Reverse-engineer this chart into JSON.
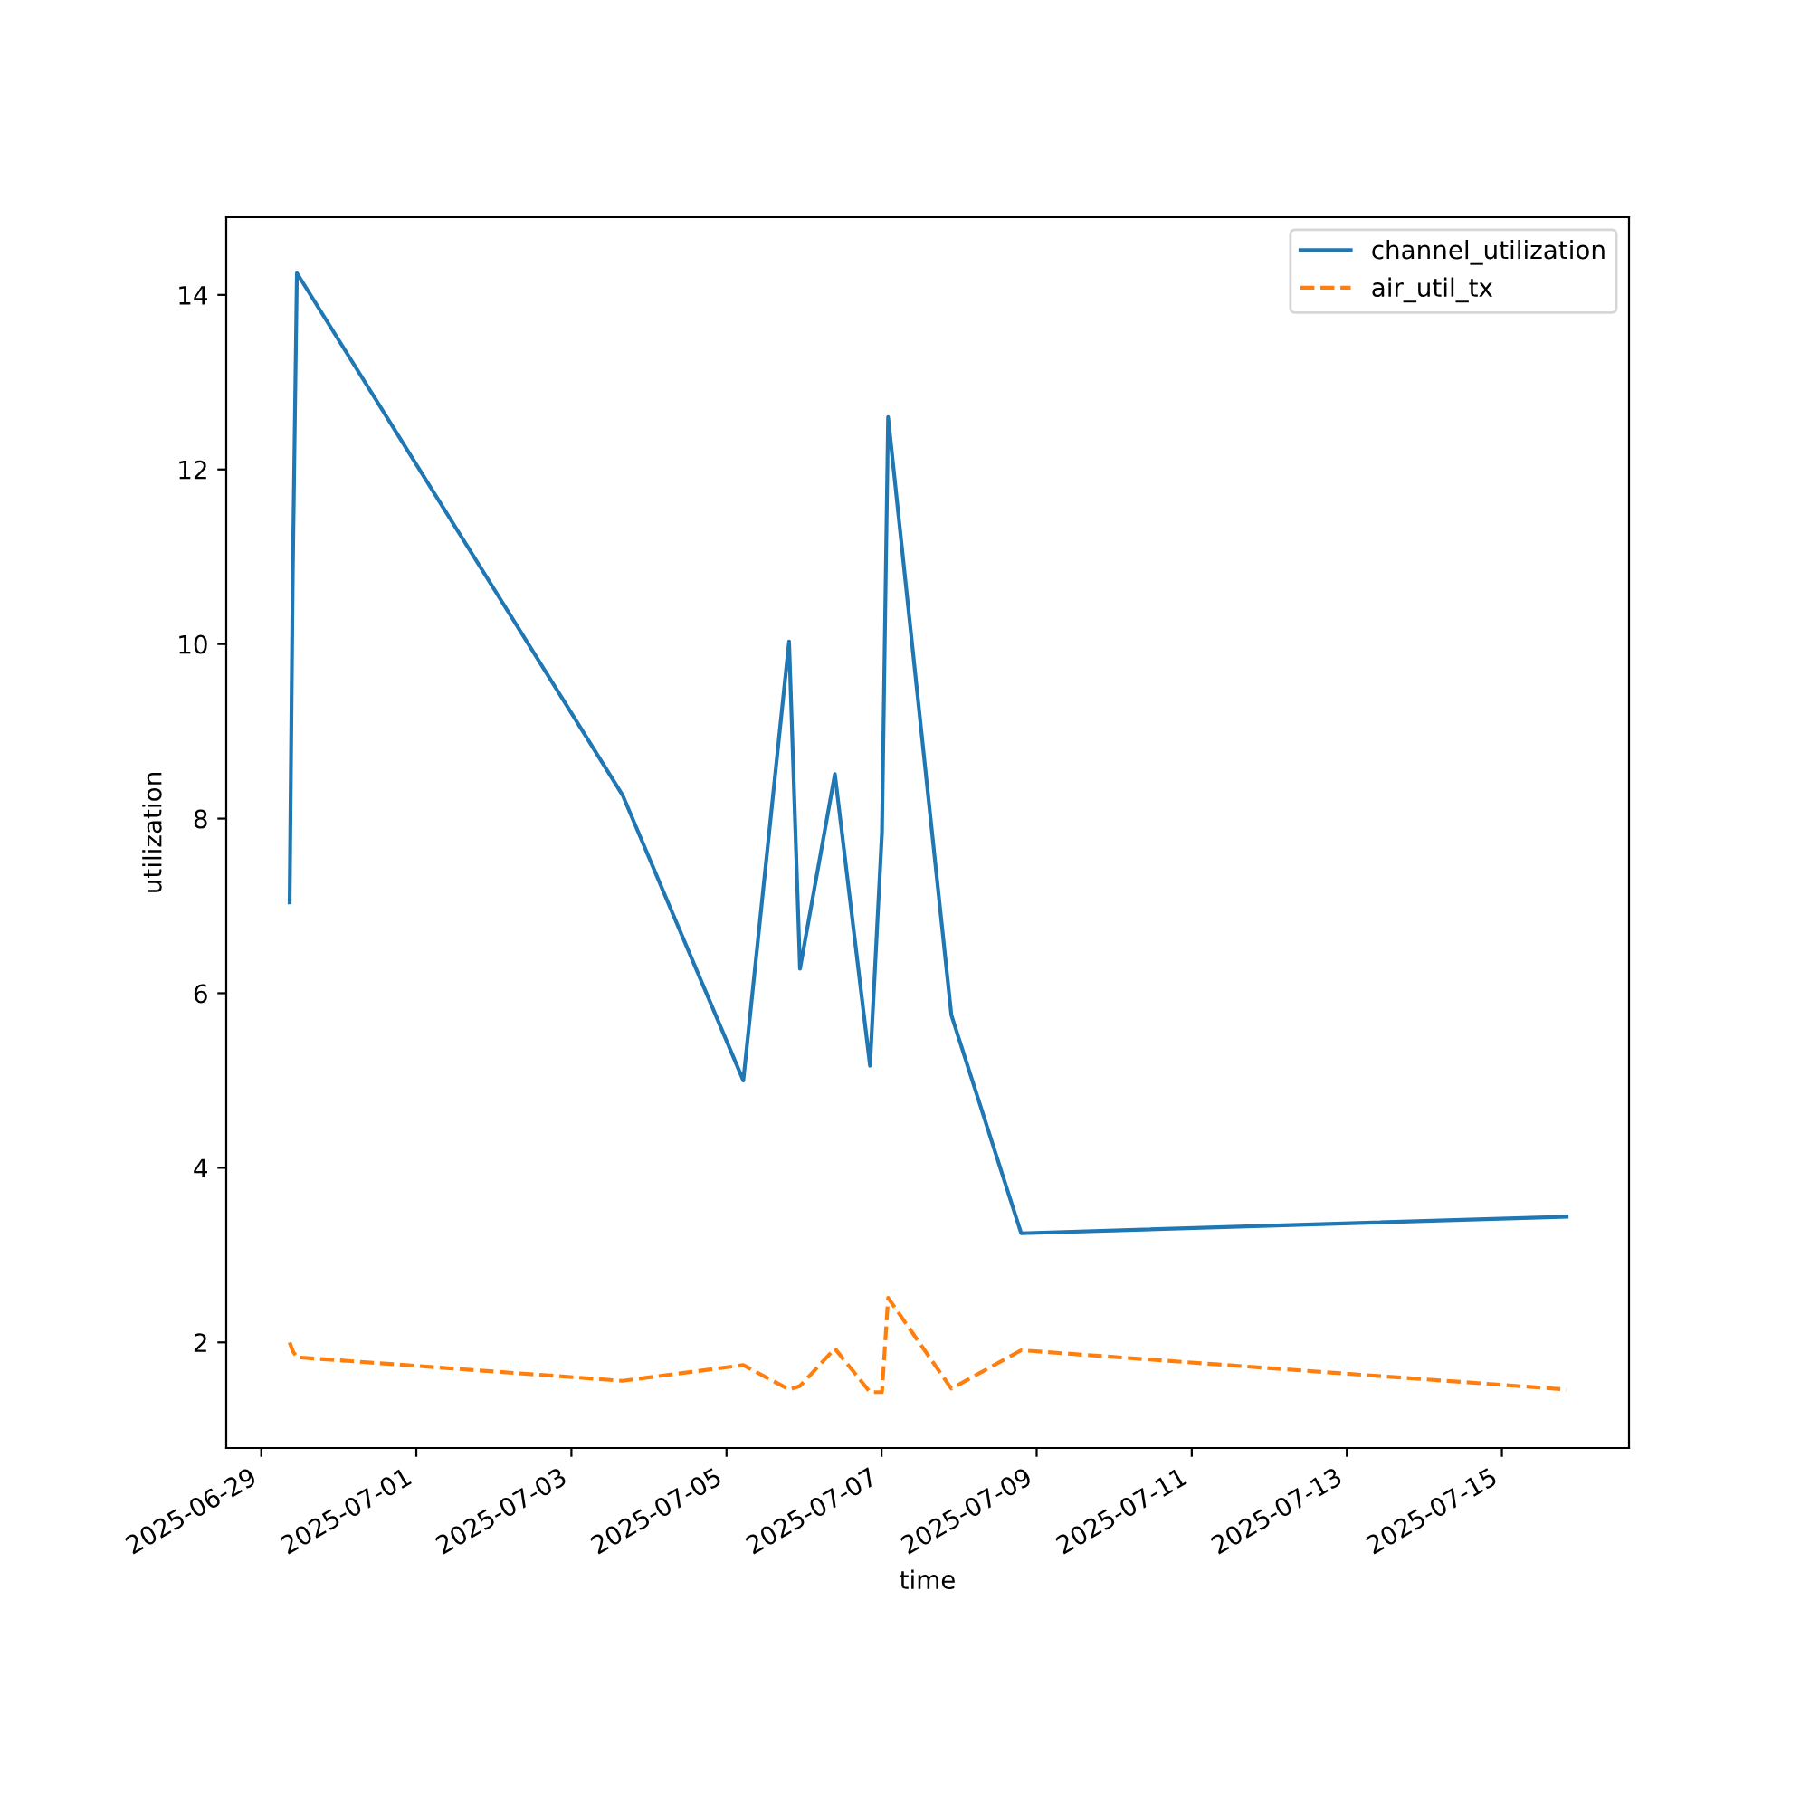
{
  "chart_data": {
    "type": "line",
    "xlabel": "time",
    "ylabel": "utilization",
    "x": [
      "2025-06-29T08:47",
      "2025-06-29T09:45",
      "2025-06-29T11:02",
      "2025-07-03T15:50",
      "2025-07-05T05:12",
      "2025-07-05T19:22",
      "2025-07-05T22:45",
      "2025-07-06T09:33",
      "2025-07-06T20:25",
      "2025-07-07T00:07",
      "2025-07-07T02:01",
      "2025-07-07T21:36",
      "2025-07-08T19:12",
      "2025-07-15T20:02"
    ],
    "series": [
      {
        "name": "channel_utilization",
        "color": "#1f77b4",
        "line_style": "solid",
        "values": [
          7.04,
          10.8,
          14.25,
          8.27,
          5.0,
          10.03,
          6.28,
          8.51,
          5.17,
          7.84,
          12.6,
          5.75,
          3.25,
          3.44
        ]
      },
      {
        "name": "air_util_tx",
        "color": "#ff7f0e",
        "line_style": "dashed",
        "values": [
          2.0,
          1.9,
          1.83,
          1.56,
          1.74,
          1.46,
          1.5,
          1.93,
          1.43,
          1.43,
          2.51,
          1.47,
          1.91,
          1.46
        ]
      }
    ],
    "xlim": [
      "2025-06-28T13:10",
      "2025-07-16T15:20"
    ],
    "xticks": [
      "2025-06-29",
      "2025-07-01",
      "2025-07-03",
      "2025-07-05",
      "2025-07-07",
      "2025-07-09",
      "2025-07-11",
      "2025-07-13",
      "2025-07-15"
    ],
    "ylim": [
      0.79,
      14.89
    ],
    "yticks": [
      2,
      4,
      6,
      8,
      10,
      12,
      14
    ],
    "legend": "top right",
    "marker": "none"
  }
}
